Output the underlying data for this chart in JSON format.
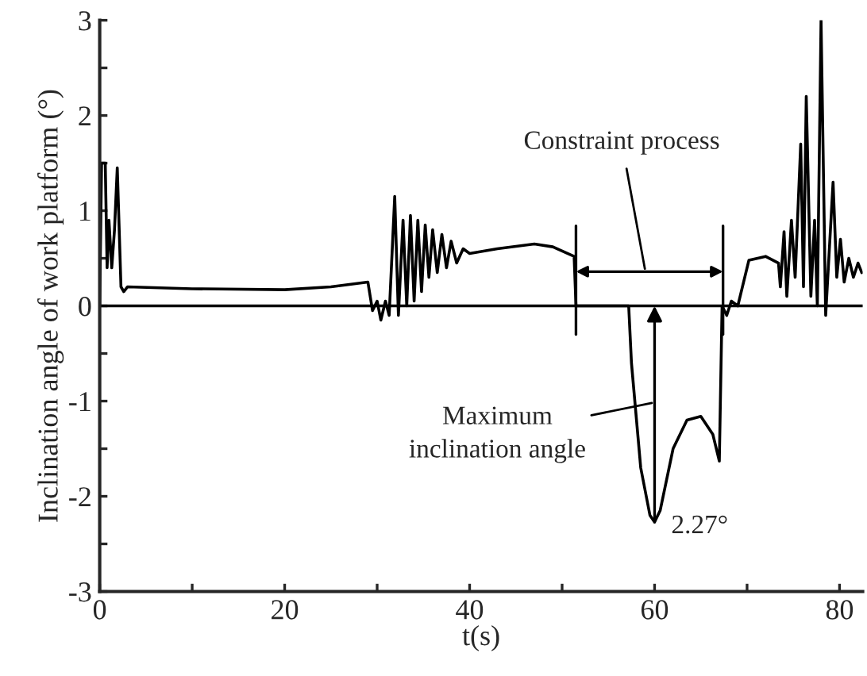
{
  "chart_data": {
    "type": "line",
    "xlabel": "t(s)",
    "ylabel": "Inclination angle of work platform (°)",
    "series": [
      {
        "color": "#000000",
        "x": [
          0,
          0.2,
          0.6,
          0.8,
          1.0,
          1.3,
          1.6,
          1.9,
          2.3,
          2.6,
          3,
          10,
          20,
          25,
          29,
          29.5,
          30,
          30.4,
          30.9,
          31.3,
          31.9,
          32.3,
          32.8,
          33.2,
          33.6,
          34.0,
          34.4,
          34.8,
          35.2,
          35.6,
          36.0,
          36.5,
          37,
          37.5,
          38,
          38.6,
          39.3,
          40,
          43,
          47,
          49,
          51.3,
          51.5,
          57.2,
          57.5,
          58.5,
          59.5,
          60,
          60.6,
          62,
          63.5,
          65,
          66.3,
          67,
          67.3,
          67.8,
          68.3,
          69,
          70.2,
          72,
          73.4,
          73.6,
          74,
          74.3,
          74.8,
          75.2,
          75.8,
          76.1,
          76.4,
          76.9,
          77.3,
          77.6,
          78,
          78.5,
          79.3,
          79.7,
          80.1,
          80.5,
          81,
          81.5,
          82,
          82.4
        ],
        "values": [
          0,
          1.5,
          1.5,
          0.4,
          0.9,
          0.4,
          0.8,
          1.45,
          0.2,
          0.15,
          0.2,
          0.18,
          0.17,
          0.2,
          0.25,
          -0.05,
          0.05,
          -0.15,
          0.05,
          -0.1,
          1.15,
          -0.1,
          0.9,
          0.0,
          0.95,
          0.05,
          0.9,
          0.15,
          0.85,
          0.3,
          0.8,
          0.35,
          0.75,
          0.4,
          0.68,
          0.45,
          0.6,
          0.55,
          0.6,
          0.65,
          0.62,
          0.52,
          0.0,
          0.0,
          -0.6,
          -1.7,
          -2.2,
          -2.27,
          -2.15,
          -1.5,
          -1.2,
          -1.16,
          -1.35,
          -1.63,
          0.0,
          -0.1,
          0.05,
          0.0,
          0.48,
          0.52,
          0.45,
          0.2,
          0.78,
          0.1,
          0.9,
          0.3,
          1.7,
          0.2,
          2.2,
          0.1,
          0.9,
          0.0,
          3.0,
          -0.1,
          1.3,
          0.3,
          0.7,
          0.25,
          0.5,
          0.3,
          0.45,
          0.35
        ]
      }
    ],
    "xlim": [
      0,
      82.5
    ],
    "ylim": [
      -3,
      3
    ],
    "xticks": [
      0,
      {
        "value": 10,
        "label": null
      },
      20,
      {
        "value": 30,
        "label": null
      },
      40,
      {
        "value": 50,
        "label": null
      },
      60,
      {
        "value": 70,
        "label": null
      },
      80
    ],
    "yticks": [
      -3,
      {
        "value": -2.5,
        "label": null
      },
      -2,
      {
        "value": -1.5,
        "label": null
      },
      -1,
      {
        "value": -0.5,
        "label": null
      },
      0,
      {
        "value": 0.5,
        "label": null
      },
      1,
      {
        "value": 1.5,
        "label": null
      },
      2,
      {
        "value": 2.5,
        "label": null
      },
      3
    ],
    "ref_lines": [
      {
        "axis": "y",
        "value": 0,
        "color": "#000000"
      },
      {
        "axis": "x",
        "value": 51.5,
        "color": "#000000"
      },
      {
        "axis": "x",
        "value": 67.4,
        "color": "#000000"
      }
    ],
    "annotations": [
      "Constraint process",
      "Maximum\ninclination angle",
      {
        "text": "2.27°",
        "x": 60,
        "y": -2.27
      }
    ],
    "grid": false,
    "legend": false,
    "marker": "none",
    "line_style": "solid"
  }
}
